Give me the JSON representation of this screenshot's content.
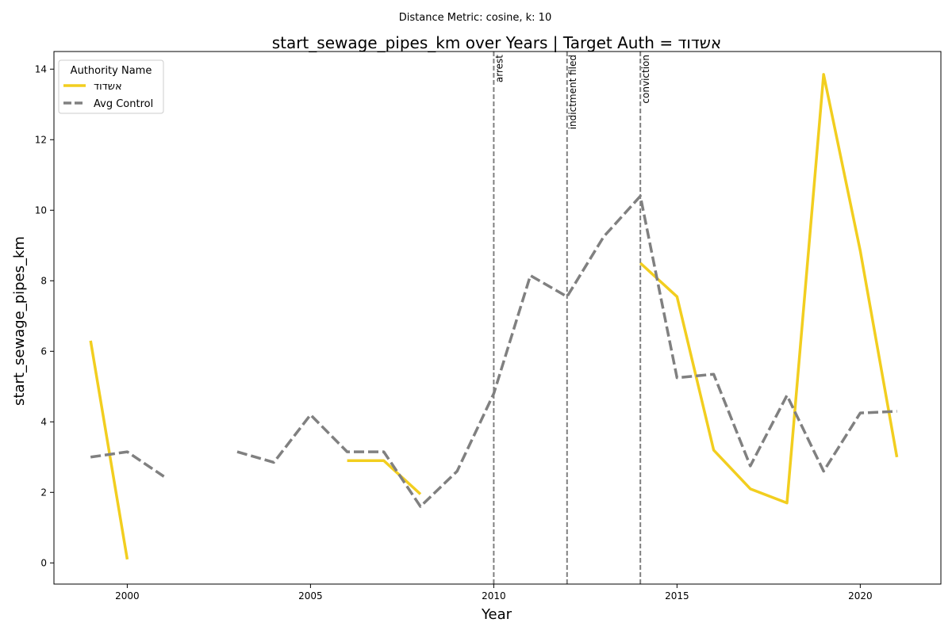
{
  "chart_data": {
    "type": "line",
    "suptitle": "Distance Metric: cosine, k: 10",
    "title": "start_sewage_pipes_km over Years | Target Auth = אשדוד",
    "xlabel": "Year",
    "ylabel": "start_sewage_pipes_km",
    "xlim": [
      1998.0,
      2022.2
    ],
    "ylim": [
      -0.6,
      14.5
    ],
    "xticks": [
      2000,
      2005,
      2010,
      2015,
      2020
    ],
    "yticks": [
      0,
      2,
      4,
      6,
      8,
      10,
      12,
      14
    ],
    "grid": false,
    "legend": {
      "title": "Authority Name",
      "placement": "upper-left"
    },
    "events": [
      {
        "label": "arrest",
        "x": 2010
      },
      {
        "label": "indictment filed",
        "x": 2012
      },
      {
        "label": "conviction",
        "x": 2014
      }
    ],
    "series": [
      {
        "name": "אשדוד",
        "color": "#f2ce1f",
        "style": "solid",
        "points": [
          [
            1999,
            6.3
          ],
          [
            2000,
            0.1
          ],
          [
            2001,
            null
          ],
          [
            2002,
            null
          ],
          [
            2003,
            null
          ],
          [
            2004,
            null
          ],
          [
            2005,
            null
          ],
          [
            2006,
            2.9
          ],
          [
            2007,
            2.9
          ],
          [
            2008,
            1.95
          ],
          [
            2009,
            null
          ],
          [
            2010,
            null
          ],
          [
            2011,
            null
          ],
          [
            2012,
            null
          ],
          [
            2013,
            null
          ],
          [
            2014,
            8.5
          ],
          [
            2015,
            7.55
          ],
          [
            2016,
            3.2
          ],
          [
            2017,
            2.1
          ],
          [
            2018,
            1.7
          ],
          [
            2019,
            13.85
          ],
          [
            2020,
            8.85
          ],
          [
            2021,
            3.0
          ]
        ]
      },
      {
        "name": "Avg Control",
        "color": "#808080",
        "style": "dashed",
        "points": [
          [
            1999,
            3.0
          ],
          [
            2000,
            3.15
          ],
          [
            2001,
            2.45
          ],
          [
            2002,
            null
          ],
          [
            2003,
            3.15
          ],
          [
            2004,
            2.85
          ],
          [
            2005,
            4.2
          ],
          [
            2006,
            3.15
          ],
          [
            2007,
            3.15
          ],
          [
            2008,
            1.6
          ],
          [
            2009,
            2.6
          ],
          [
            2010,
            4.8
          ],
          [
            2011,
            8.15
          ],
          [
            2012,
            7.55
          ],
          [
            2013,
            9.25
          ],
          [
            2014,
            10.4
          ],
          [
            2015,
            5.25
          ],
          [
            2016,
            5.35
          ],
          [
            2017,
            2.75
          ],
          [
            2018,
            4.75
          ],
          [
            2019,
            2.6
          ],
          [
            2020,
            4.25
          ],
          [
            2021,
            4.3
          ]
        ]
      }
    ]
  }
}
